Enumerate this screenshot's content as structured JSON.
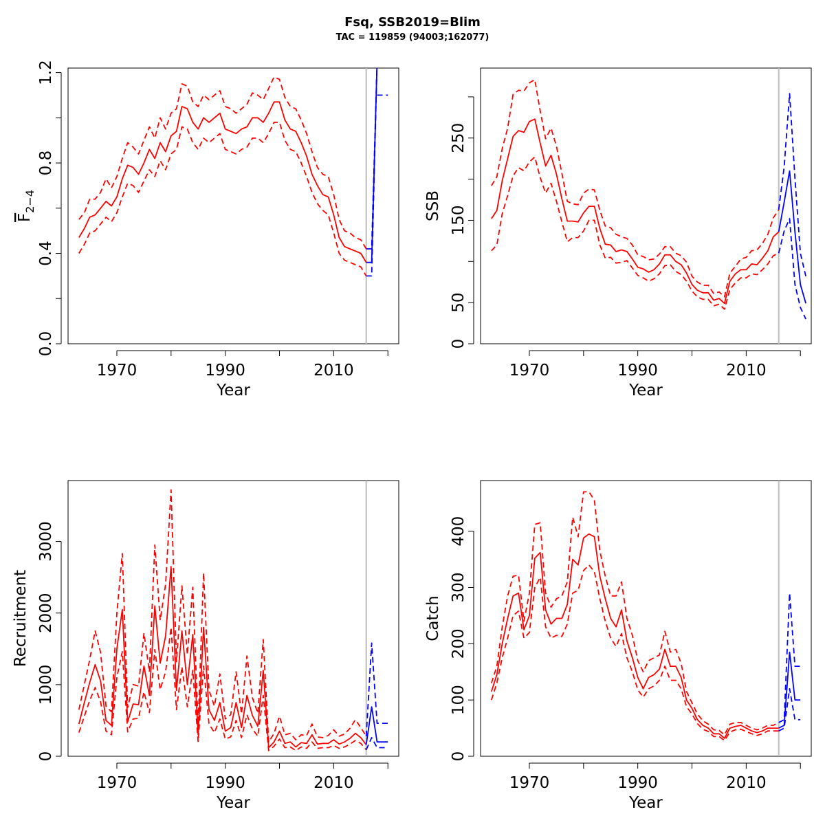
{
  "title": "Fsq, SSB2019=Blim",
  "subtitle": "TAC = 119859 (94003;162077)",
  "colors": {
    "historic": "#ff0000",
    "forecast": "#0000ff",
    "reference_line": "#bebebe",
    "axis": "#000000"
  },
  "reference_year": 2016,
  "chart_data": [
    {
      "id": "fbar",
      "type": "line",
      "xlabel": "Year",
      "ylabel": "F2-4",
      "ylabel_main": "F",
      "ylabel_sub": "2−4",
      "xlim": [
        1961,
        2022
      ],
      "ylim": [
        0,
        1.22
      ],
      "xticks": [
        1970,
        1980,
        1990,
        2000,
        2010,
        2020
      ],
      "xtick_labels": [
        "1970",
        "1990",
        "2010"
      ],
      "yticks": [
        0.0,
        0.2,
        0.4,
        0.6,
        0.8,
        1.0,
        1.2
      ],
      "ytick_labels": [
        "0.0",
        "0.4",
        "0.8",
        "1.2"
      ],
      "historic": {
        "x": [
          1963,
          1964,
          1965,
          1966,
          1967,
          1968,
          1969,
          1970,
          1971,
          1972,
          1973,
          1974,
          1975,
          1976,
          1977,
          1978,
          1979,
          1980,
          1981,
          1982,
          1983,
          1984,
          1985,
          1986,
          1987,
          1988,
          1989,
          1990,
          1991,
          1992,
          1993,
          1994,
          1995,
          1996,
          1997,
          1998,
          1999,
          2000,
          2001,
          2002,
          2003,
          2004,
          2005,
          2006,
          2007,
          2008,
          2009,
          2010,
          2011,
          2012,
          2013,
          2014,
          2015,
          2016
        ],
        "median": [
          0.47,
          0.51,
          0.56,
          0.57,
          0.6,
          0.63,
          0.61,
          0.65,
          0.73,
          0.79,
          0.78,
          0.75,
          0.8,
          0.86,
          0.82,
          0.89,
          0.85,
          0.92,
          0.94,
          1.05,
          1.04,
          0.98,
          0.95,
          1.0,
          0.98,
          1.0,
          1.02,
          0.95,
          0.94,
          0.93,
          0.95,
          0.96,
          1.0,
          1.0,
          0.98,
          1.02,
          1.07,
          1.07,
          0.99,
          0.95,
          0.94,
          0.89,
          0.83,
          0.75,
          0.7,
          0.66,
          0.65,
          0.57,
          0.47,
          0.43,
          0.42,
          0.41,
          0.4,
          0.36
        ],
        "upper": [
          0.55,
          0.58,
          0.64,
          0.64,
          0.67,
          0.73,
          0.69,
          0.74,
          0.82,
          0.89,
          0.87,
          0.84,
          0.9,
          0.96,
          0.91,
          1.0,
          0.95,
          1.02,
          1.04,
          1.15,
          1.14,
          1.07,
          1.05,
          1.1,
          1.08,
          1.1,
          1.12,
          1.05,
          1.04,
          1.02,
          1.04,
          1.06,
          1.11,
          1.1,
          1.08,
          1.13,
          1.18,
          1.17,
          1.09,
          1.05,
          1.04,
          0.99,
          0.93,
          0.85,
          0.78,
          0.75,
          0.74,
          0.66,
          0.55,
          0.5,
          0.49,
          0.47,
          0.46,
          0.42
        ],
        "lower": [
          0.4,
          0.44,
          0.49,
          0.5,
          0.53,
          0.56,
          0.54,
          0.58,
          0.65,
          0.71,
          0.7,
          0.67,
          0.72,
          0.77,
          0.74,
          0.81,
          0.77,
          0.84,
          0.86,
          0.96,
          0.95,
          0.89,
          0.86,
          0.91,
          0.89,
          0.91,
          0.93,
          0.86,
          0.85,
          0.84,
          0.86,
          0.87,
          0.91,
          0.91,
          0.89,
          0.93,
          0.98,
          0.98,
          0.9,
          0.86,
          0.85,
          0.8,
          0.74,
          0.67,
          0.62,
          0.59,
          0.57,
          0.49,
          0.4,
          0.37,
          0.36,
          0.35,
          0.34,
          0.3
        ]
      },
      "forecast": {
        "x": [
          2016,
          2017,
          2018
        ],
        "median": [
          0.36,
          0.36,
          1.25
        ],
        "upper": [
          0.42,
          0.42,
          1.25
        ],
        "lower": [
          0.3,
          0.3,
          1.25
        ]
      },
      "forecast_segments": [
        {
          "x": [
            2018,
            2020
          ],
          "y": [
            1.1,
            1.1
          ],
          "dash": true
        }
      ]
    },
    {
      "id": "ssb",
      "type": "line",
      "xlabel": "Year",
      "ylabel": "SSB",
      "xlim": [
        1961,
        2022
      ],
      "ylim": [
        0,
        335
      ],
      "xticks": [
        1970,
        1980,
        1990,
        2000,
        2010,
        2020
      ],
      "xtick_labels": [
        "1970",
        "1990",
        "2010"
      ],
      "yticks": [
        0,
        50,
        100,
        150,
        200,
        250,
        300
      ],
      "ytick_labels": [
        "0",
        "50",
        "150",
        "250"
      ],
      "historic": {
        "x": [
          1963,
          1964,
          1965,
          1966,
          1967,
          1968,
          1969,
          1970,
          1971,
          1972,
          1973,
          1974,
          1975,
          1976,
          1977,
          1978,
          1979,
          1980,
          1981,
          1982,
          1983,
          1984,
          1985,
          1986,
          1987,
          1988,
          1989,
          1990,
          1991,
          1992,
          1993,
          1994,
          1995,
          1996,
          1997,
          1998,
          1999,
          2000,
          2001,
          2002,
          2003,
          2004,
          2005,
          2006,
          2007,
          2008,
          2009,
          2010,
          2011,
          2012,
          2013,
          2014,
          2015,
          2016
        ],
        "median": [
          152,
          162,
          198,
          225,
          252,
          259,
          257,
          270,
          273,
          244,
          216,
          229,
          206,
          176,
          149,
          149,
          148,
          159,
          167,
          167,
          140,
          121,
          120,
          112,
          114,
          112,
          103,
          93,
          91,
          87,
          90,
          97,
          108,
          108,
          100,
          96,
          86,
          72,
          65,
          62,
          62,
          53,
          55,
          49,
          76,
          85,
          90,
          90,
          97,
          96,
          104,
          113,
          130,
          136
        ],
        "upper": [
          192,
          203,
          237,
          262,
          303,
          308,
          307,
          317,
          321,
          283,
          249,
          262,
          240,
          207,
          173,
          170,
          169,
          183,
          188,
          187,
          162,
          143,
          141,
          133,
          130,
          128,
          120,
          108,
          106,
          102,
          103,
          109,
          118,
          118,
          110,
          107,
          99,
          82,
          75,
          71,
          71,
          61,
          63,
          57,
          86,
          94,
          103,
          105,
          113,
          114,
          122,
          133,
          153,
          163
        ],
        "lower": [
          113,
          120,
          158,
          180,
          204,
          214,
          210,
          221,
          227,
          202,
          183,
          195,
          173,
          148,
          124,
          129,
          129,
          137,
          150,
          150,
          120,
          104,
          105,
          98,
          99,
          101,
          92,
          83,
          80,
          76,
          79,
          85,
          95,
          96,
          88,
          84,
          76,
          64,
          57,
          54,
          54,
          46,
          48,
          42,
          66,
          74,
          80,
          80,
          85,
          84,
          90,
          97,
          107,
          110
        ]
      },
      "forecast": {
        "x": [
          2016,
          2017,
          2018,
          2019,
          2020,
          2021
        ],
        "median": [
          136,
          172,
          210,
          136,
          72,
          49
        ],
        "upper": [
          163,
          215,
          304,
          201,
          110,
          82
        ],
        "lower": [
          110,
          137,
          152,
          72,
          44,
          30
        ]
      },
      "forecast_segments": []
    },
    {
      "id": "recruitment",
      "type": "line",
      "xlabel": "Year",
      "ylabel": "Recruitment",
      "xlim": [
        1961,
        2022
      ],
      "ylim": [
        0,
        3850
      ],
      "xticks": [
        1970,
        1980,
        1990,
        2000,
        2010,
        2020
      ],
      "xtick_labels": [
        "1970",
        "1990",
        "2010"
      ],
      "yticks": [
        0,
        1000,
        2000,
        3000
      ],
      "ytick_labels": [
        "0",
        "1000",
        "2000",
        "3000"
      ],
      "historic": {
        "x": [
          1963,
          1964,
          1965,
          1966,
          1967,
          1968,
          1969,
          1970,
          1971,
          1972,
          1973,
          1974,
          1975,
          1976,
          1977,
          1978,
          1979,
          1980,
          1981,
          1982,
          1983,
          1984,
          1985,
          1986,
          1987,
          1988,
          1989,
          1990,
          1991,
          1992,
          1993,
          1994,
          1995,
          1996,
          1997,
          1998,
          1999,
          2000,
          2001,
          2002,
          2003,
          2004,
          2005,
          2006,
          2007,
          2008,
          2009,
          2010,
          2011,
          2012,
          2013,
          2014,
          2015,
          2016
        ],
        "median": [
          450,
          750,
          1030,
          1280,
          1050,
          500,
          430,
          1500,
          2050,
          480,
          730,
          720,
          1260,
          850,
          2100,
          1300,
          1680,
          2650,
          920,
          1750,
          1000,
          1700,
          300,
          1800,
          650,
          500,
          750,
          350,
          400,
          750,
          400,
          850,
          570,
          420,
          1200,
          120,
          200,
          350,
          180,
          200,
          130,
          190,
          180,
          300,
          170,
          180,
          180,
          230,
          170,
          200,
          250,
          320,
          260,
          160
        ],
        "upper": [
          650,
          1000,
          1350,
          1750,
          1450,
          700,
          620,
          2000,
          2830,
          680,
          1000,
          980,
          1720,
          1180,
          2950,
          1900,
          2400,
          3720,
          1320,
          2380,
          1420,
          2360,
          440,
          2560,
          920,
          700,
          1150,
          520,
          580,
          1180,
          590,
          1400,
          820,
          600,
          1630,
          200,
          320,
          560,
          300,
          320,
          230,
          300,
          290,
          450,
          270,
          260,
          290,
          370,
          280,
          310,
          390,
          510,
          400,
          280
        ],
        "lower": [
          330,
          560,
          780,
          960,
          760,
          350,
          300,
          1100,
          1460,
          340,
          520,
          530,
          900,
          610,
          1490,
          930,
          1180,
          1800,
          650,
          1250,
          690,
          1200,
          200,
          1260,
          450,
          330,
          520,
          240,
          270,
          500,
          260,
          580,
          380,
          280,
          850,
          80,
          140,
          240,
          120,
          130,
          80,
          130,
          110,
          200,
          110,
          120,
          120,
          150,
          110,
          130,
          170,
          220,
          180,
          90
        ]
      },
      "forecast": {
        "x": [
          2016,
          2017,
          2018,
          2019,
          2020
        ],
        "median": [
          160,
          690,
          200,
          200,
          200
        ],
        "upper": [
          280,
          1580,
          460,
          460,
          460
        ],
        "lower": [
          90,
          260,
          120,
          120,
          120
        ]
      },
      "forecast_segments": []
    },
    {
      "id": "catch",
      "type": "line",
      "xlabel": "Year",
      "ylabel": "Catch",
      "xlim": [
        1961,
        2022
      ],
      "ylim": [
        0,
        490
      ],
      "xticks": [
        1970,
        1980,
        1990,
        2000,
        2010,
        2020
      ],
      "xtick_labels": [
        "1970",
        "1990",
        "2010"
      ],
      "yticks": [
        0,
        100,
        200,
        300,
        400
      ],
      "ytick_labels": [
        "0",
        "100",
        "200",
        "300",
        "400"
      ],
      "historic": {
        "x": [
          1963,
          1964,
          1965,
          1966,
          1967,
          1968,
          1969,
          1970,
          1971,
          1972,
          1973,
          1974,
          1975,
          1976,
          1977,
          1978,
          1979,
          1980,
          1981,
          1982,
          1983,
          1984,
          1985,
          1986,
          1987,
          1988,
          1989,
          1990,
          1991,
          1992,
          1993,
          1994,
          1995,
          1996,
          1997,
          1998,
          1999,
          2000,
          2001,
          2002,
          2003,
          2004,
          2005,
          2006,
          2007,
          2008,
          2009,
          2010,
          2011,
          2012,
          2013,
          2014,
          2015,
          2016
        ],
        "median": [
          115,
          145,
          200,
          245,
          285,
          290,
          225,
          250,
          352,
          362,
          260,
          235,
          245,
          245,
          270,
          350,
          340,
          388,
          395,
          390,
          320,
          280,
          245,
          230,
          260,
          205,
          175,
          140,
          120,
          140,
          145,
          155,
          190,
          160,
          160,
          140,
          100,
          85,
          65,
          55,
          50,
          40,
          40,
          32,
          50,
          53,
          55,
          50,
          45,
          42,
          45,
          50,
          50,
          50
        ],
        "upper": [
          130,
          160,
          230,
          285,
          320,
          322,
          240,
          290,
          412,
          415,
          290,
          265,
          280,
          285,
          310,
          425,
          390,
          470,
          470,
          455,
          365,
          320,
          285,
          285,
          310,
          245,
          215,
          170,
          150,
          170,
          175,
          180,
          222,
          185,
          190,
          165,
          115,
          95,
          75,
          63,
          57,
          47,
          46,
          38,
          57,
          60,
          60,
          55,
          50,
          47,
          50,
          55,
          55,
          60
        ],
        "lower": [
          100,
          130,
          175,
          210,
          250,
          258,
          210,
          220,
          300,
          318,
          230,
          210,
          215,
          213,
          235,
          290,
          295,
          330,
          340,
          328,
          280,
          240,
          210,
          195,
          218,
          175,
          150,
          118,
          105,
          120,
          125,
          135,
          160,
          135,
          135,
          120,
          88,
          75,
          58,
          48,
          44,
          35,
          35,
          28,
          43,
          47,
          48,
          44,
          40,
          37,
          40,
          45,
          45,
          45
        ]
      },
      "forecast": {
        "x": [
          2016,
          2017,
          2018,
          2019,
          2020
        ],
        "median": [
          50,
          55,
          185,
          100,
          100
        ],
        "upper": [
          60,
          65,
          290,
          160,
          160
        ],
        "lower": [
          45,
          50,
          120,
          65,
          65
        ]
      },
      "forecast_segments": []
    }
  ]
}
